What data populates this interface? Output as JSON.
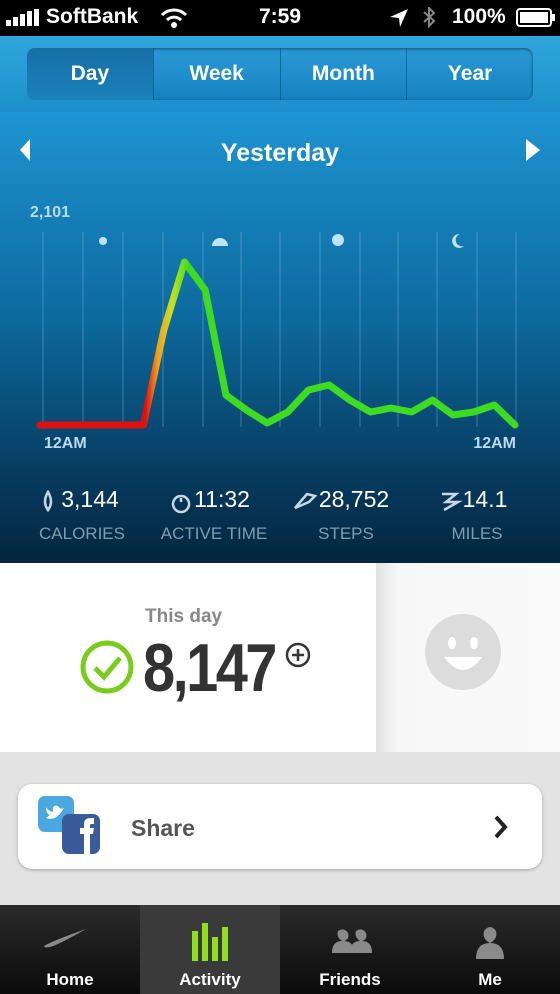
{
  "status_bar": {
    "carrier": "SoftBank",
    "time": "7:59",
    "battery": "100%"
  },
  "tabs": [
    "Day",
    "Week",
    "Month",
    "Year"
  ],
  "nav": {
    "title": "Yesterday"
  },
  "activity_chart": {
    "type": "line",
    "values": [
      0,
      0,
      0,
      0,
      0,
      0,
      1000,
      1712,
      1418,
      315,
      158,
      21,
      137,
      368,
      420,
      263,
      137,
      179,
      137,
      263,
      105,
      137,
      210,
      0
    ],
    "ylim": [
      0,
      2101
    ],
    "yticks": [
      {
        "value": 2101,
        "label": "2,101"
      }
    ],
    "x_labels": [
      "12AM",
      "12AM"
    ]
  },
  "stats": [
    {
      "value": "3,144",
      "label": "CALORIES"
    },
    {
      "value": "11:32",
      "label": "ACTIVE TIME"
    },
    {
      "value": "28,752",
      "label": "STEPS"
    },
    {
      "value": "14.1",
      "label": "MILES"
    }
  ],
  "summary": {
    "caption": "This day",
    "points": "8,147"
  },
  "share": {
    "label": "Share"
  },
  "tab_bar": [
    "Home",
    "Activity",
    "Friends",
    "Me"
  ]
}
